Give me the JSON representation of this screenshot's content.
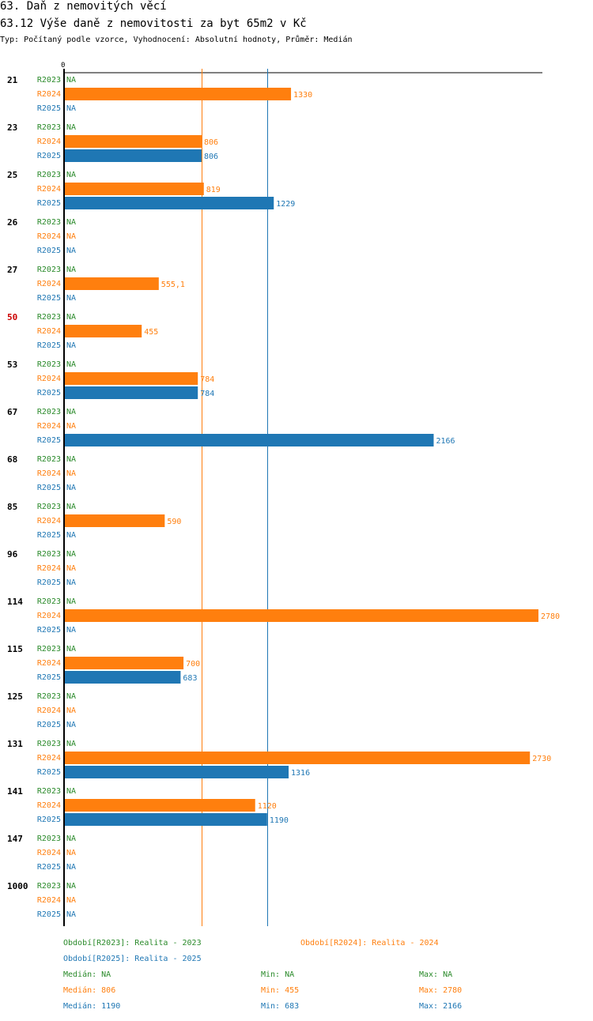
{
  "title": "63. Daň z nemovitých věcí",
  "subtitle": "63.12 Výše daně z nemovitosti za byt 65m2 v Kč",
  "meta": "Typ: Počítaný podle vzorce, Vyhodnocení: Absolutní hodnoty, Průměr: Medián",
  "colors": {
    "R2023": "#2a8a2a",
    "R2024": "#ff7f0e",
    "R2025": "#1f77b4",
    "highlight": "#cc0000"
  },
  "chart_data": {
    "type": "bar",
    "orientation": "horizontal",
    "axis_zero_label": "0",
    "xlim": [
      0,
      2780
    ],
    "series_names": [
      "R2023",
      "R2024",
      "R2025"
    ],
    "categories": [
      "21",
      "23",
      "25",
      "26",
      "27",
      "50",
      "53",
      "67",
      "68",
      "85",
      "96",
      "114",
      "115",
      "125",
      "131",
      "141",
      "147",
      "1000"
    ],
    "highlight_category": "50",
    "na_label": "NA",
    "series": [
      {
        "name": "R2023",
        "values": [
          null,
          null,
          null,
          null,
          null,
          null,
          null,
          null,
          null,
          null,
          null,
          null,
          null,
          null,
          null,
          null,
          null,
          null
        ]
      },
      {
        "name": "R2024",
        "values": [
          1330,
          806,
          819,
          null,
          555.1,
          455,
          784,
          null,
          null,
          590,
          null,
          2780,
          700,
          null,
          2730,
          1120,
          null,
          null
        ]
      },
      {
        "name": "R2025",
        "values": [
          null,
          806,
          1229,
          null,
          null,
          null,
          784,
          2166,
          null,
          null,
          null,
          null,
          683,
          null,
          1316,
          1190,
          null,
          null
        ]
      }
    ],
    "value_labels": {
      "R2024": [
        "1330",
        "806",
        "819",
        null,
        "555,1",
        "455",
        "784",
        null,
        null,
        "590",
        null,
        "2780",
        "700",
        null,
        "2730",
        "1120",
        null,
        null
      ],
      "R2025": [
        null,
        "806",
        "1229",
        null,
        null,
        null,
        "784",
        "2166",
        null,
        null,
        null,
        null,
        "683",
        null,
        "1316",
        "1190",
        null,
        null
      ]
    },
    "median_lines": [
      {
        "series": "R2024",
        "value": 806
      },
      {
        "series": "R2025",
        "value": 1190
      }
    ]
  },
  "legend": {
    "r2023": "Období[R2023]: Realita - 2023",
    "r2024": "Období[R2024]: Realita - 2024",
    "r2025": "Období[R2025]: Realita - 2025"
  },
  "stats": {
    "r2023": {
      "median": "Medián: NA",
      "min": "Min: NA",
      "max": "Max: NA"
    },
    "r2024": {
      "median": "Medián: 806",
      "min": "Min: 455",
      "max": "Max: 2780"
    },
    "r2025": {
      "median": "Medián: 1190",
      "min": "Min: 683",
      "max": "Max: 2166"
    }
  }
}
